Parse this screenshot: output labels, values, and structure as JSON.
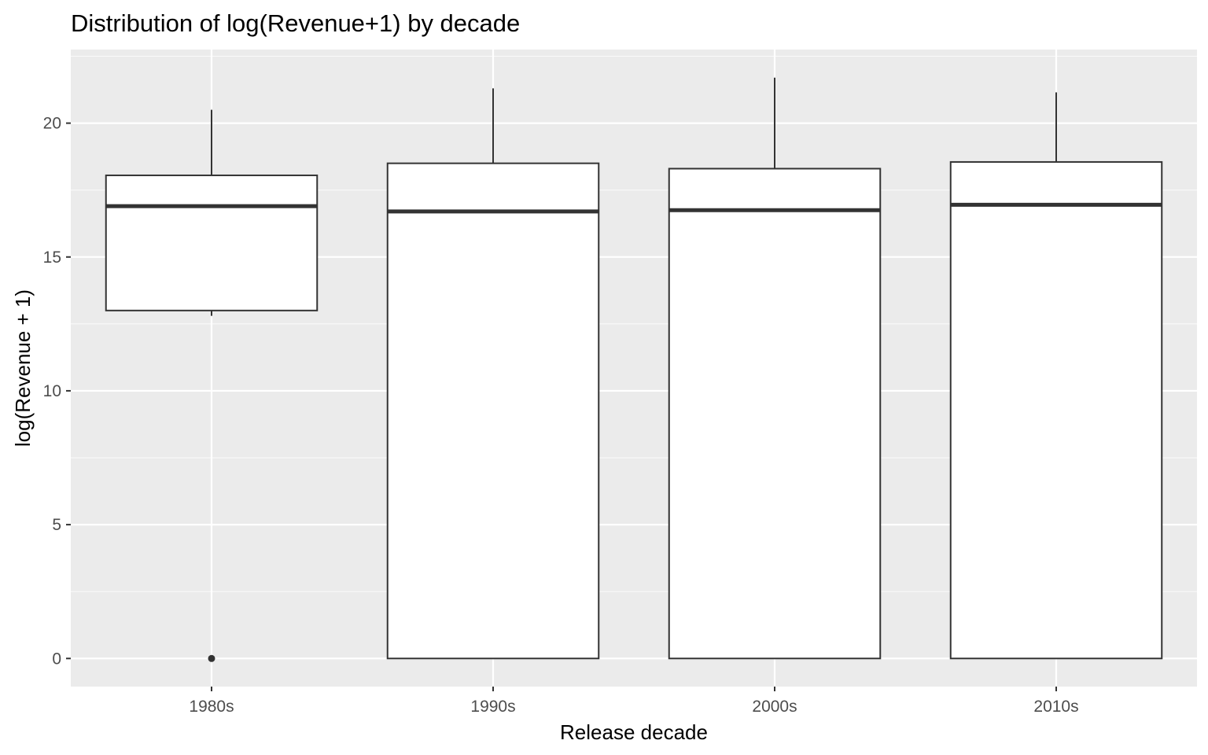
{
  "chart_data": {
    "type": "boxplot",
    "title": "Distribution of log(Revenue+1) by decade",
    "xlabel": "Release decade",
    "ylabel": "log(Revenue + 1)",
    "categories": [
      "1980s",
      "1990s",
      "2000s",
      "2010s"
    ],
    "ylim": [
      -1.05,
      22.75
    ],
    "yticks": [
      0,
      5,
      10,
      15,
      20
    ],
    "grid": true,
    "boxes": [
      {
        "category": "1980s",
        "whisker_low": 12.8,
        "q1": 13.0,
        "median": 16.9,
        "q3": 18.05,
        "whisker_high": 20.5,
        "outliers": [
          0
        ]
      },
      {
        "category": "1990s",
        "whisker_low": 0,
        "q1": 0,
        "median": 16.7,
        "q3": 18.5,
        "whisker_high": 21.3,
        "outliers": []
      },
      {
        "category": "2000s",
        "whisker_low": 0,
        "q1": 0,
        "median": 16.75,
        "q3": 18.3,
        "whisker_high": 21.7,
        "outliers": []
      },
      {
        "category": "2010s",
        "whisker_low": 0,
        "q1": 0,
        "median": 16.95,
        "q3": 18.55,
        "whisker_high": 21.15,
        "outliers": []
      }
    ],
    "colors": {
      "panel": "#ebebeb",
      "grid_major": "#ffffff",
      "box_fill": "#ffffff",
      "box_line": "#333333"
    }
  }
}
